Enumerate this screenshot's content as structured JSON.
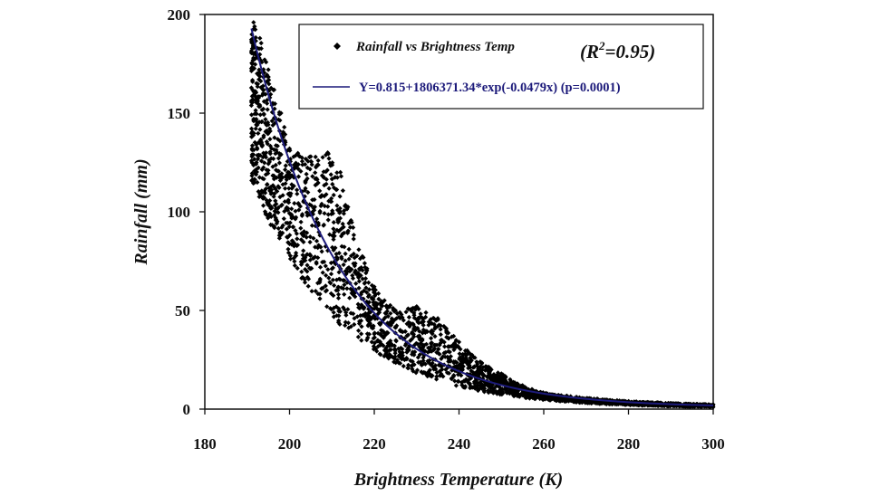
{
  "chart_data": {
    "type": "scatter",
    "xlabel": "Brightness Temperature (K)",
    "ylabel": "Rainfall (mm)",
    "xlim": [
      180,
      300
    ],
    "ylim": [
      0,
      200
    ],
    "x_ticks": [
      "180",
      "200",
      "220",
      "240",
      "260",
      "280",
      "300"
    ],
    "y_ticks": [
      "0",
      "50",
      "100",
      "150",
      "200"
    ],
    "grid": false,
    "legend_position": "top-right",
    "series": [
      {
        "name": "Rainfall vs Brightness Temp",
        "kind": "scatter",
        "color": "#000000",
        "marker": "diamond",
        "x_range": [
          191,
          300
        ],
        "points_sample": [
          {
            "x": 191.5,
            "y": 196
          },
          {
            "x": 193,
            "y": 188
          },
          {
            "x": 195,
            "y": 172
          },
          {
            "x": 198,
            "y": 150
          },
          {
            "x": 200,
            "y": 132
          },
          {
            "x": 205,
            "y": 128
          },
          {
            "x": 209,
            "y": 130
          },
          {
            "x": 212,
            "y": 120
          },
          {
            "x": 215,
            "y": 92
          },
          {
            "x": 220,
            "y": 62
          },
          {
            "x": 225,
            "y": 50
          },
          {
            "x": 230,
            "y": 52
          },
          {
            "x": 235,
            "y": 46
          },
          {
            "x": 240,
            "y": 34
          },
          {
            "x": 245,
            "y": 24
          },
          {
            "x": 250,
            "y": 18
          },
          {
            "x": 255,
            "y": 12
          },
          {
            "x": 260,
            "y": 8
          },
          {
            "x": 270,
            "y": 4
          },
          {
            "x": 280,
            "y": 2.5
          },
          {
            "x": 300,
            "y": 1
          }
        ]
      },
      {
        "name": "Y=0.815+1806371.34*exp(-0.0479x) (p=0.0001)",
        "kind": "line",
        "color": "#1c1a7a",
        "equation": {
          "a": 0.815,
          "b": 1806371.34,
          "c": -0.0479
        }
      }
    ],
    "annotation": {
      "prefix": "(R",
      "sup": "2",
      "suffix": "=0.95)"
    }
  }
}
